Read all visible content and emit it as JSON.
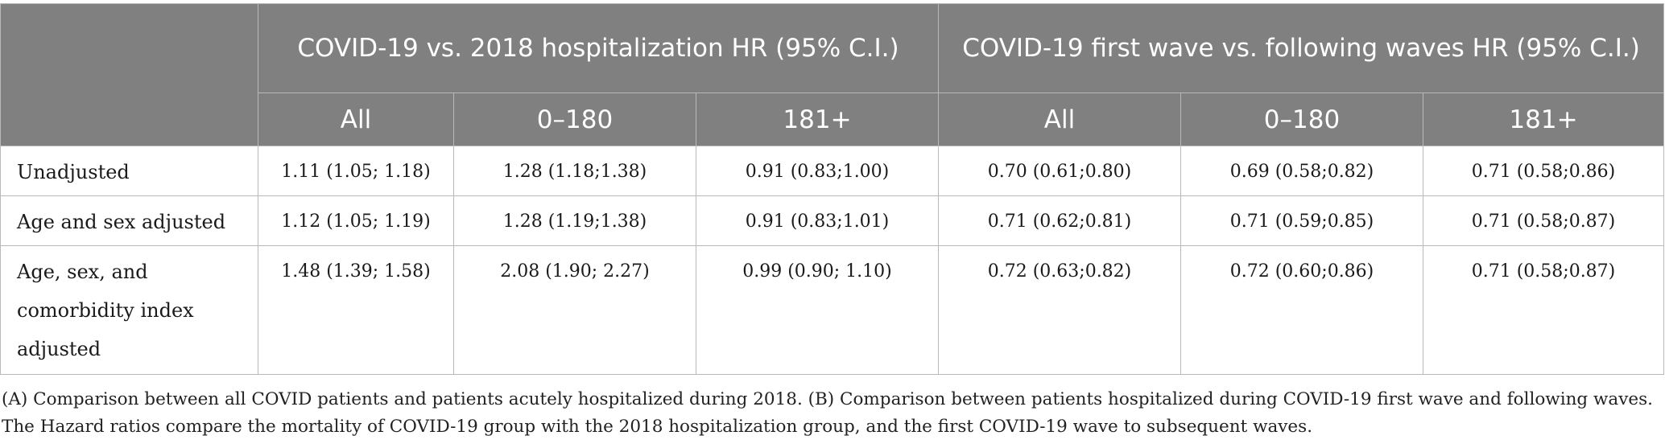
{
  "table": {
    "group_headers": [
      "COVID-19 vs. 2018 hospitalization HR (95% C.I.)",
      "COVID-19 first wave vs. following waves HR (95% C.I.)"
    ],
    "sub_headers": [
      "All",
      "0–180",
      "181+",
      "All",
      "0–180",
      "181+"
    ],
    "rows": [
      {
        "label": "Unadjusted",
        "values": [
          "1.11 (1.05; 1.18)",
          "1.28 (1.18;1.38)",
          "0.91 (0.83;1.00)",
          "0.70 (0.61;0.80)",
          "0.69 (0.58;0.82)",
          "0.71 (0.58;0.86)"
        ]
      },
      {
        "label": "Age and sex adjusted",
        "values": [
          "1.12 (1.05; 1.19)",
          "1.28 (1.19;1.38)",
          "0.91 (0.83;1.01)",
          "0.71 (0.62;0.81)",
          "0.71 (0.59;0.85)",
          "0.71 (0.58;0.87)"
        ]
      },
      {
        "label": "Age, sex, and comorbidity index adjusted",
        "values": [
          "1.48 (1.39; 1.58)",
          "2.08 (1.90; 2.27)",
          "0.99 (0.90; 1.10)",
          "0.72 (0.63;0.82)",
          "0.72 (0.60;0.86)",
          "0.71 (0.58;0.87)"
        ]
      }
    ]
  },
  "footnote": {
    "line1": "(A) Comparison between all COVID patients and patients acutely hospitalized during 2018. (B) Comparison between patients hospitalized during COVID-19 first wave and following waves.",
    "line2": "The Hazard ratios compare the mortality of COVID-19 group with the 2018 hospitalization group, and the first COVID-19 wave to subsequent waves."
  }
}
